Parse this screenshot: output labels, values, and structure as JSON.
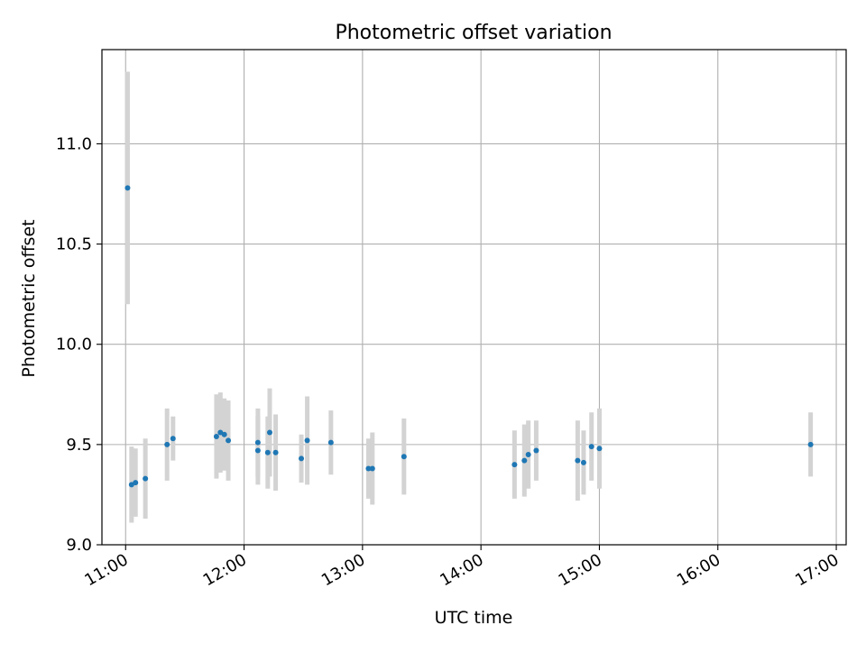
{
  "chart_data": {
    "type": "scatter",
    "title": "Photometric offset variation",
    "xlabel": "UTC time",
    "ylabel": "Photometric offset",
    "xlim": [
      "10:48",
      "17:05"
    ],
    "ylim": [
      9.0,
      11.47
    ],
    "grid": true,
    "x_ticks": [
      "11:00",
      "12:00",
      "13:00",
      "14:00",
      "15:00",
      "16:00",
      "17:00"
    ],
    "y_ticks": [
      "9.0",
      "9.5",
      "10.0",
      "10.5",
      "11.0"
    ],
    "colors": {
      "marker": "#1f77b4",
      "errorbar": "#d3d3d3",
      "grid": "#b0b0b0",
      "axes": "#000000"
    },
    "series": [
      {
        "points": [
          {
            "x": "11:01",
            "y": 10.78,
            "yerr": 0.58
          },
          {
            "x": "11:03",
            "y": 9.3,
            "yerr": 0.19
          },
          {
            "x": "11:05",
            "y": 9.31,
            "yerr": 0.17
          },
          {
            "x": "11:10",
            "y": 9.33,
            "yerr": 0.2
          },
          {
            "x": "11:21",
            "y": 9.5,
            "yerr": 0.18
          },
          {
            "x": "11:24",
            "y": 9.53,
            "yerr": 0.11
          },
          {
            "x": "11:46",
            "y": 9.54,
            "yerr": 0.21
          },
          {
            "x": "11:48",
            "y": 9.56,
            "yerr": 0.2
          },
          {
            "x": "11:50",
            "y": 9.55,
            "yerr": 0.18
          },
          {
            "x": "11:52",
            "y": 9.52,
            "yerr": 0.2
          },
          {
            "x": "12:07",
            "y": 9.51,
            "yerr": 0.17
          },
          {
            "x": "12:07",
            "y": 9.47,
            "yerr": 0.17
          },
          {
            "x": "12:12",
            "y": 9.46,
            "yerr": 0.18
          },
          {
            "x": "12:13",
            "y": 9.56,
            "yerr": 0.22
          },
          {
            "x": "12:16",
            "y": 9.46,
            "yerr": 0.19
          },
          {
            "x": "12:29",
            "y": 9.43,
            "yerr": 0.12
          },
          {
            "x": "12:32",
            "y": 9.52,
            "yerr": 0.22
          },
          {
            "x": "12:44",
            "y": 9.51,
            "yerr": 0.16
          },
          {
            "x": "13:03",
            "y": 9.38,
            "yerr": 0.15
          },
          {
            "x": "13:05",
            "y": 9.38,
            "yerr": 0.18
          },
          {
            "x": "13:21",
            "y": 9.44,
            "yerr": 0.19
          },
          {
            "x": "14:17",
            "y": 9.4,
            "yerr": 0.17
          },
          {
            "x": "14:22",
            "y": 9.42,
            "yerr": 0.18
          },
          {
            "x": "14:24",
            "y": 9.45,
            "yerr": 0.17
          },
          {
            "x": "14:28",
            "y": 9.47,
            "yerr": 0.15
          },
          {
            "x": "14:49",
            "y": 9.42,
            "yerr": 0.2
          },
          {
            "x": "14:52",
            "y": 9.41,
            "yerr": 0.16
          },
          {
            "x": "14:56",
            "y": 9.49,
            "yerr": 0.17
          },
          {
            "x": "15:00",
            "y": 9.48,
            "yerr": 0.2
          },
          {
            "x": "16:47",
            "y": 9.5,
            "yerr": 0.16
          }
        ]
      }
    ]
  }
}
